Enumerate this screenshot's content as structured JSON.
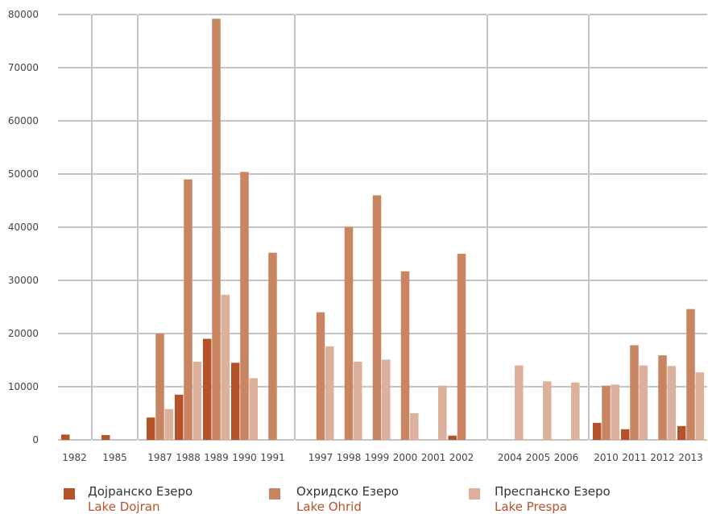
{
  "chart_data": {
    "type": "bar",
    "title": "",
    "xlabel": "",
    "ylabel": "",
    "ylim": [
      0,
      80000
    ],
    "yticks": [
      0,
      10000,
      20000,
      30000,
      40000,
      50000,
      60000,
      70000,
      80000
    ],
    "grid": true,
    "legend_position": "bottom",
    "categories": [
      "1982",
      "1985",
      "1987",
      "1988",
      "1989",
      "1990",
      "1991",
      "1997",
      "1998",
      "1999",
      "2000",
      "2001",
      "2002",
      "2004",
      "2005",
      "2006",
      "2010",
      "2011",
      "2012",
      "2013"
    ],
    "groups": [
      [
        "1982"
      ],
      [
        "1985"
      ],
      [
        "1987",
        "1988",
        "1989",
        "1990",
        "1991"
      ],
      [
        "1997",
        "1998",
        "1999",
        "2000",
        "2001",
        "2002"
      ],
      [
        "2004",
        "2005",
        "2006"
      ],
      [
        "2010",
        "2011",
        "2012",
        "2013"
      ]
    ],
    "series": [
      {
        "name": "Дојранско Езеро",
        "name_en": "Lake Dojran",
        "color": "#b5522a",
        "values": [
          1000,
          900,
          4200,
          8500,
          19000,
          14500,
          null,
          null,
          null,
          null,
          null,
          null,
          800,
          null,
          null,
          null,
          3200,
          2000,
          null,
          2600
        ]
      },
      {
        "name": "Охридско Езеро",
        "name_en": "Lake Ohrid",
        "color": "#c98462",
        "values": [
          null,
          null,
          20000,
          49000,
          79200,
          50400,
          35200,
          24000,
          40100,
          46000,
          31700,
          null,
          35000,
          null,
          null,
          null,
          10200,
          17800,
          15900,
          24600
        ]
      },
      {
        "name": "Преспанско Езеро",
        "name_en": "Lake Prespa",
        "color": "#ddb09b",
        "values": [
          null,
          null,
          5800,
          14700,
          27300,
          11600,
          null,
          17600,
          14700,
          15100,
          5000,
          10200,
          null,
          14000,
          11000,
          10800,
          10400,
          14000,
          13900,
          12700
        ]
      }
    ],
    "legend_label_color": "#b5522a"
  }
}
